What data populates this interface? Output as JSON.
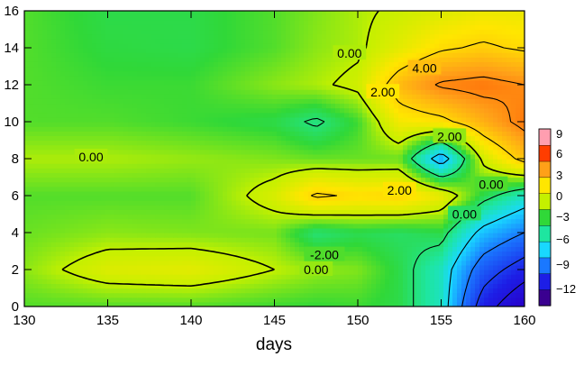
{
  "chart_data": {
    "type": "contour",
    "xlabel": "days",
    "ylabel": "",
    "xlim": [
      130,
      160
    ],
    "ylim": [
      0,
      16
    ],
    "x_ticks": [
      130,
      135,
      140,
      145,
      150,
      155,
      160
    ],
    "y_ticks": [
      0,
      2,
      4,
      6,
      8,
      10,
      12,
      14,
      16
    ],
    "x": [
      130,
      135,
      140,
      145,
      147.5,
      150,
      152.5,
      155,
      157.5,
      160
    ],
    "y": [
      0,
      2,
      4,
      6,
      8,
      10,
      12,
      14,
      16
    ],
    "z": [
      [
        -1.0,
        -1.0,
        -1.0,
        -1.2,
        -1.3,
        -1.2,
        -1.5,
        -3.0,
        -9.0,
        -12.0
      ],
      [
        -0.5,
        0.6,
        0.8,
        0.0,
        -0.4,
        -0.6,
        -1.5,
        -3.0,
        -7.0,
        -9.0
      ],
      [
        -0.8,
        -0.5,
        -0.6,
        -0.7,
        -2.0,
        -1.6,
        -1.8,
        -1.5,
        -4.5,
        -6.0
      ],
      [
        -1.0,
        -1.0,
        -1.0,
        0.5,
        2.2,
        1.8,
        2.0,
        1.0,
        -1.5,
        -3.0
      ],
      [
        -0.2,
        -0.2,
        -0.4,
        -0.6,
        -0.8,
        -0.8,
        -0.8,
        -5.0,
        0.3,
        2.5
      ],
      [
        -1.0,
        -1.0,
        -1.2,
        -1.5,
        -2.2,
        -1.2,
        1.2,
        1.6,
        3.0,
        4.5
      ],
      [
        -1.0,
        -1.2,
        -1.2,
        -0.5,
        -0.2,
        0.3,
        2.8,
        4.2,
        4.5,
        4.0
      ],
      [
        -1.0,
        -1.4,
        -1.5,
        -1.0,
        -0.5,
        -0.2,
        0.8,
        1.8,
        2.2,
        1.8
      ],
      [
        -1.0,
        -1.5,
        -1.5,
        -1.0,
        -0.6,
        -0.2,
        0.2,
        0.6,
        1.0,
        1.0
      ]
    ],
    "color_levels": [
      -12,
      -9,
      -6,
      -3,
      0,
      3,
      6,
      9
    ],
    "colorbar_labels": [
      "9",
      "6",
      "3",
      "0",
      "−3",
      "−6",
      "−9",
      "−12"
    ],
    "contour_labels": [
      {
        "text": "0.00",
        "x": 134.0,
        "y": 8.1
      },
      {
        "text": "0.00",
        "x": 149.5,
        "y": 13.7
      },
      {
        "text": "4.00",
        "x": 154.0,
        "y": 12.9
      },
      {
        "text": "2.00",
        "x": 151.5,
        "y": 11.6
      },
      {
        "text": "2.00",
        "x": 155.5,
        "y": 9.2
      },
      {
        "text": "2.00",
        "x": 152.5,
        "y": 6.3
      },
      {
        "text": "0.00",
        "x": 158.0,
        "y": 6.6
      },
      {
        "text": "0.00",
        "x": 156.4,
        "y": 5.0
      },
      {
        "text": "-2.00",
        "x": 148.0,
        "y": 2.8
      },
      {
        "text": "0.00",
        "x": 147.5,
        "y": 2.0
      }
    ],
    "colorbar_colors": [
      "#3a0090",
      "#1d1ee6",
      "#1a78ff",
      "#19d8ff",
      "#1ee6a0",
      "#30d838",
      "#c4f000",
      "#ffe600",
      "#ffa018",
      "#ff3d00",
      "#ff9eb0"
    ]
  }
}
